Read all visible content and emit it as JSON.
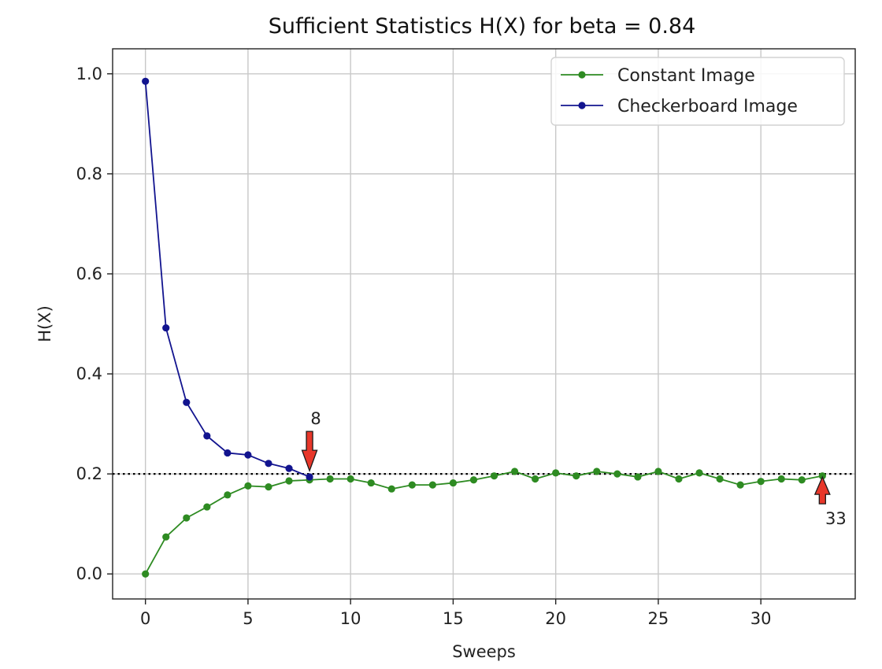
{
  "chart_data": {
    "type": "line",
    "title": "Sufficient Statistics H(X) for beta = 0.84",
    "xlabel": "Sweeps",
    "ylabel": "H(X)",
    "xlim": [
      -1.6,
      34.6
    ],
    "ylim": [
      -0.05,
      1.05
    ],
    "xticks": [
      0,
      5,
      10,
      15,
      20,
      25,
      30
    ],
    "yticks": [
      0.0,
      0.2,
      0.4,
      0.6,
      0.8,
      1.0
    ],
    "xtick_labels": [
      "0",
      "5",
      "10",
      "15",
      "20",
      "25",
      "30"
    ],
    "ytick_labels": [
      "0.0",
      "0.2",
      "0.4",
      "0.6",
      "0.8",
      "1.0"
    ],
    "grid": true,
    "legend_position": "top-right",
    "reference_line": {
      "y": 0.2,
      "style": "dotted",
      "color": "#000000"
    },
    "series": [
      {
        "name": "Constant Image",
        "color": "#2e8b22",
        "x": [
          0,
          1,
          2,
          3,
          4,
          5,
          6,
          7,
          8,
          9,
          10,
          11,
          12,
          13,
          14,
          15,
          16,
          17,
          18,
          19,
          20,
          21,
          22,
          23,
          24,
          25,
          26,
          27,
          28,
          29,
          30,
          31,
          32,
          33
        ],
        "values": [
          0.0,
          0.074,
          0.112,
          0.134,
          0.158,
          0.176,
          0.174,
          0.186,
          0.188,
          0.19,
          0.19,
          0.182,
          0.17,
          0.178,
          0.178,
          0.182,
          0.188,
          0.196,
          0.205,
          0.19,
          0.202,
          0.196,
          0.205,
          0.2,
          0.194,
          0.205,
          0.19,
          0.202,
          0.19,
          0.178,
          0.185,
          0.19,
          0.188,
          0.196
        ]
      },
      {
        "name": "Checkerboard Image",
        "color": "#12148f",
        "x": [
          0,
          1,
          2,
          3,
          4,
          5,
          6,
          7,
          8
        ],
        "values": [
          0.985,
          0.492,
          0.343,
          0.276,
          0.242,
          0.238,
          0.221,
          0.211,
          0.194
        ]
      }
    ],
    "annotations": [
      {
        "text": "8",
        "x": 8,
        "y": 0.2,
        "direction": "down",
        "arrow_color": "#e8372a"
      },
      {
        "text": "33",
        "x": 33,
        "y": 0.2,
        "direction": "up",
        "arrow_color": "#e8372a"
      }
    ]
  }
}
